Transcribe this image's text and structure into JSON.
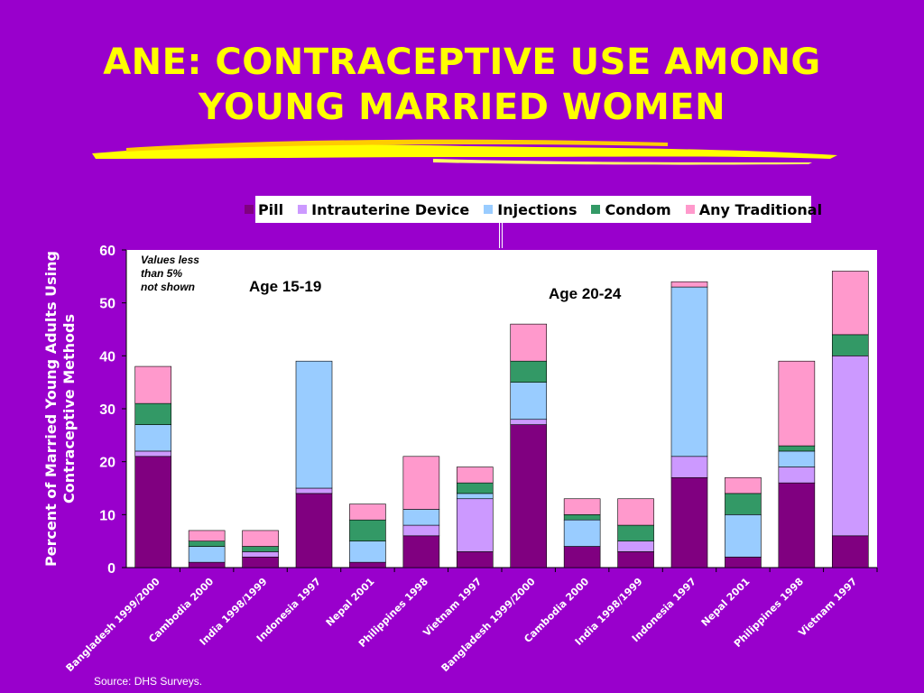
{
  "title_line1": "ANE: CONTRACEPTIVE USE AMONG",
  "title_line2": "YOUNG MARRIED WOMEN",
  "source": "Source: DHS Surveys.",
  "colors": {
    "background": "#9900cc",
    "title": "#ffff00",
    "Pill": "#800080",
    "Intrauterine Device": "#cc99ff",
    "Injections": "#99ccff",
    "Condom": "#339966",
    "Any Traditional": "#ff99cc"
  },
  "chart_data": {
    "type": "bar",
    "stacked": true,
    "ylabel": "Percent of Married Young Adults Using Contraceptive Methods",
    "ylim": [
      0,
      60
    ],
    "yticks": [
      0,
      10,
      20,
      30,
      40,
      50,
      60
    ],
    "legend_position": "top-center",
    "categories": [
      "Bangladesh 1999/2000",
      "Cambodia 2000",
      "India 1998/1999",
      "Indonesia 1997",
      "Nepal 2001",
      "Philippines 1998",
      "Vietnam 1997",
      "Bangladesh 1999/2000",
      "Cambodia 2000",
      "India 1998/1999",
      "Indonesia 1997",
      "Nepal 2001",
      "Philippines 1998",
      "Vietnam 1997"
    ],
    "groups": [
      {
        "label": "Age 15-19",
        "categories": [
          0,
          1,
          2,
          3,
          4,
          5,
          6
        ]
      },
      {
        "label": "Age 20-24",
        "categories": [
          7,
          8,
          9,
          10,
          11,
          12,
          13
        ]
      }
    ],
    "series": [
      {
        "name": "Pill",
        "values": [
          21,
          1,
          2,
          14,
          1,
          6,
          3,
          27,
          4,
          3,
          17,
          2,
          16,
          6
        ]
      },
      {
        "name": "Intrauterine Device",
        "values": [
          1,
          0,
          1,
          1,
          0,
          2,
          10,
          1,
          0,
          2,
          4,
          0,
          3,
          34
        ]
      },
      {
        "name": "Injections",
        "values": [
          5,
          3,
          0,
          24,
          4,
          3,
          1,
          7,
          5,
          0,
          32,
          8,
          3,
          0
        ]
      },
      {
        "name": "Condom",
        "values": [
          4,
          1,
          1,
          0,
          4,
          0,
          2,
          4,
          1,
          3,
          0,
          4,
          1,
          4
        ]
      },
      {
        "name": "Any Traditional",
        "values": [
          7,
          2,
          3,
          0,
          3,
          10,
          3,
          7,
          3,
          5,
          1,
          3,
          16,
          12
        ]
      }
    ],
    "annotations": [
      "Values less",
      "than 5%",
      "not shown"
    ],
    "group_labels": [
      "Age 15-19",
      "Age 20-24"
    ]
  }
}
